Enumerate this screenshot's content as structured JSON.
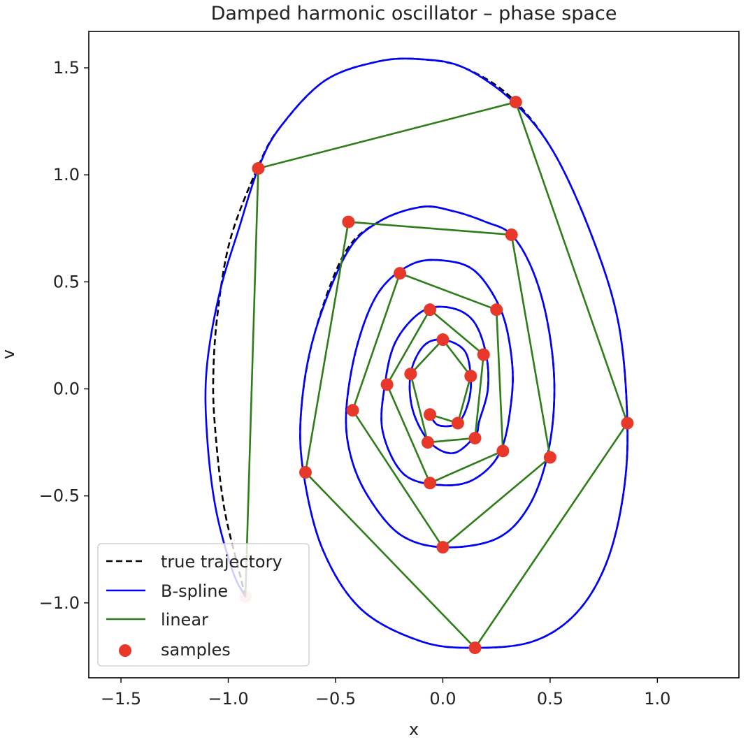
{
  "chart_data": {
    "type": "line",
    "title": "Damped harmonic oscillator – phase space",
    "xlabel": "x",
    "ylabel": "v",
    "xlim": [
      -1.65,
      1.38
    ],
    "ylim": [
      -1.35,
      1.67
    ],
    "xticks": [
      -1.5,
      -1.0,
      -0.5,
      0.0,
      0.5,
      1.0
    ],
    "xtick_labels": [
      "−1.5",
      "−1.0",
      "−0.5",
      "0.0",
      "0.5",
      "1.0"
    ],
    "yticks": [
      1.5,
      1.0,
      0.5,
      0.0,
      -0.5,
      -1.0
    ],
    "ytick_labels": [
      "1.5",
      "1.0",
      "0.5",
      "0.0",
      "−0.5",
      "−1.0"
    ],
    "grid": false,
    "legend_position": "lower-left",
    "series": [
      {
        "name": "true trajectory",
        "style": "dashed",
        "color": "#000000",
        "points": [
          [
            -0.92,
            -0.97
          ],
          [
            -0.95,
            -0.85
          ],
          [
            -1.02,
            -0.55
          ],
          [
            -1.06,
            -0.2
          ],
          [
            -1.07,
            0.05
          ],
          [
            -1.05,
            0.35
          ],
          [
            -0.99,
            0.7
          ],
          [
            -0.86,
            1.04
          ],
          [
            -0.76,
            1.22
          ],
          [
            -0.55,
            1.44
          ],
          [
            -0.3,
            1.53
          ],
          [
            -0.1,
            1.54
          ],
          [
            0.1,
            1.5
          ],
          [
            0.32,
            1.36
          ],
          [
            0.52,
            1.1
          ],
          [
            0.7,
            0.7
          ],
          [
            0.82,
            0.3
          ],
          [
            0.86,
            -0.16
          ],
          [
            0.84,
            -0.5
          ],
          [
            0.76,
            -0.82
          ],
          [
            0.62,
            -1.05
          ],
          [
            0.42,
            -1.18
          ],
          [
            0.15,
            -1.21
          ],
          [
            -0.1,
            -1.18
          ],
          [
            -0.38,
            -1.03
          ],
          [
            -0.56,
            -0.75
          ],
          [
            -0.65,
            -0.39
          ],
          [
            -0.66,
            -0.1
          ],
          [
            -0.6,
            0.25
          ],
          [
            -0.46,
            0.63
          ],
          [
            -0.3,
            0.78
          ],
          [
            -0.1,
            0.85
          ],
          [
            0.05,
            0.83
          ],
          [
            0.2,
            0.78
          ],
          [
            0.32,
            0.72
          ],
          [
            0.42,
            0.55
          ],
          [
            0.49,
            0.3
          ],
          [
            0.52,
            0.0
          ],
          [
            0.49,
            -0.3
          ],
          [
            0.4,
            -0.55
          ],
          [
            0.25,
            -0.7
          ],
          [
            0.0,
            -0.74
          ],
          [
            -0.2,
            -0.68
          ],
          [
            -0.35,
            -0.5
          ],
          [
            -0.43,
            -0.31
          ],
          [
            -0.45,
            -0.1
          ],
          [
            -0.4,
            0.2
          ],
          [
            -0.3,
            0.45
          ],
          [
            -0.15,
            0.58
          ],
          [
            0.0,
            0.6
          ],
          [
            0.15,
            0.55
          ],
          [
            0.27,
            0.37
          ],
          [
            0.32,
            0.15
          ],
          [
            0.32,
            -0.05
          ],
          [
            0.27,
            -0.29
          ],
          [
            0.15,
            -0.42
          ],
          [
            0.0,
            -0.45
          ],
          [
            -0.18,
            -0.4
          ],
          [
            -0.28,
            -0.2
          ],
          [
            -0.27,
            0.02
          ],
          [
            -0.22,
            0.22
          ],
          [
            -0.1,
            0.36
          ],
          [
            0.03,
            0.38
          ],
          [
            0.14,
            0.32
          ],
          [
            0.2,
            0.17
          ],
          [
            0.21,
            0.0
          ],
          [
            0.17,
            -0.15
          ],
          [
            0.15,
            -0.22
          ],
          [
            0.05,
            -0.3
          ],
          [
            -0.06,
            -0.25
          ],
          [
            -0.14,
            -0.1
          ],
          [
            -0.15,
            0.07
          ],
          [
            -0.09,
            0.2
          ],
          [
            0.0,
            0.23
          ],
          [
            0.1,
            0.18
          ],
          [
            0.13,
            0.06
          ],
          [
            0.12,
            -0.06
          ],
          [
            0.07,
            -0.16
          ],
          [
            -0.02,
            -0.17
          ],
          [
            -0.06,
            -0.12
          ]
        ]
      },
      {
        "name": "B-spline",
        "style": "solid",
        "color": "#0000ff",
        "points": [
          [
            -0.92,
            -0.97
          ],
          [
            -0.98,
            -0.85
          ],
          [
            -1.06,
            -0.55
          ],
          [
            -1.1,
            -0.2
          ],
          [
            -1.1,
            0.1
          ],
          [
            -1.04,
            0.45
          ],
          [
            -0.95,
            0.75
          ],
          [
            -0.86,
            1.03
          ],
          [
            -0.76,
            1.22
          ],
          [
            -0.55,
            1.44
          ],
          [
            -0.3,
            1.53
          ],
          [
            -0.1,
            1.54
          ],
          [
            0.1,
            1.5
          ],
          [
            0.33,
            1.34
          ],
          [
            0.52,
            1.1
          ],
          [
            0.7,
            0.7
          ],
          [
            0.82,
            0.3
          ],
          [
            0.86,
            -0.16
          ],
          [
            0.84,
            -0.5
          ],
          [
            0.76,
            -0.82
          ],
          [
            0.62,
            -1.05
          ],
          [
            0.42,
            -1.18
          ],
          [
            0.15,
            -1.21
          ],
          [
            -0.1,
            -1.18
          ],
          [
            -0.38,
            -1.03
          ],
          [
            -0.56,
            -0.75
          ],
          [
            -0.65,
            -0.39
          ],
          [
            -0.66,
            -0.1
          ],
          [
            -0.6,
            0.25
          ],
          [
            -0.45,
            0.63
          ],
          [
            -0.3,
            0.78
          ],
          [
            -0.1,
            0.85
          ],
          [
            0.05,
            0.83
          ],
          [
            0.2,
            0.78
          ],
          [
            0.32,
            0.72
          ],
          [
            0.42,
            0.55
          ],
          [
            0.49,
            0.3
          ],
          [
            0.52,
            0.0
          ],
          [
            0.49,
            -0.3
          ],
          [
            0.4,
            -0.55
          ],
          [
            0.25,
            -0.7
          ],
          [
            0.0,
            -0.74
          ],
          [
            -0.2,
            -0.68
          ],
          [
            -0.35,
            -0.5
          ],
          [
            -0.43,
            -0.31
          ],
          [
            -0.45,
            -0.1
          ],
          [
            -0.4,
            0.2
          ],
          [
            -0.3,
            0.45
          ],
          [
            -0.15,
            0.58
          ],
          [
            0.0,
            0.6
          ],
          [
            0.15,
            0.55
          ],
          [
            0.27,
            0.37
          ],
          [
            0.32,
            0.15
          ],
          [
            0.32,
            -0.05
          ],
          [
            0.27,
            -0.29
          ],
          [
            0.15,
            -0.42
          ],
          [
            0.0,
            -0.45
          ],
          [
            -0.18,
            -0.4
          ],
          [
            -0.28,
            -0.2
          ],
          [
            -0.27,
            0.02
          ],
          [
            -0.22,
            0.22
          ],
          [
            -0.1,
            0.36
          ],
          [
            0.03,
            0.38
          ],
          [
            0.14,
            0.32
          ],
          [
            0.2,
            0.17
          ],
          [
            0.21,
            0.0
          ],
          [
            0.17,
            -0.15
          ],
          [
            0.15,
            -0.22
          ],
          [
            0.05,
            -0.3
          ],
          [
            -0.06,
            -0.25
          ],
          [
            -0.14,
            -0.1
          ],
          [
            -0.15,
            0.07
          ],
          [
            -0.09,
            0.2
          ],
          [
            0.0,
            0.23
          ],
          [
            0.1,
            0.18
          ],
          [
            0.13,
            0.06
          ],
          [
            0.12,
            -0.06
          ],
          [
            0.07,
            -0.16
          ],
          [
            -0.02,
            -0.17
          ],
          [
            -0.06,
            -0.12
          ]
        ]
      },
      {
        "name": "linear",
        "style": "solid",
        "color": "#2e7d1a",
        "points": [
          [
            -0.92,
            -0.97
          ],
          [
            -0.86,
            1.03
          ],
          [
            0.34,
            1.34
          ],
          [
            0.86,
            -0.16
          ],
          [
            0.15,
            -1.21
          ],
          [
            -0.64,
            -0.39
          ],
          [
            -0.44,
            0.78
          ],
          [
            0.32,
            0.72
          ],
          [
            0.5,
            -0.32
          ],
          [
            0.0,
            -0.74
          ],
          [
            -0.42,
            -0.1
          ],
          [
            -0.2,
            0.54
          ],
          [
            0.25,
            0.37
          ],
          [
            0.28,
            -0.29
          ],
          [
            -0.06,
            -0.44
          ],
          [
            -0.26,
            0.02
          ],
          [
            -0.06,
            0.37
          ],
          [
            0.19,
            0.16
          ],
          [
            0.15,
            -0.23
          ],
          [
            -0.07,
            -0.25
          ],
          [
            -0.15,
            0.07
          ],
          [
            0.0,
            0.23
          ],
          [
            0.13,
            0.06
          ],
          [
            0.07,
            -0.16
          ],
          [
            -0.06,
            -0.12
          ]
        ]
      },
      {
        "name": "samples",
        "style": "markers",
        "color": "#e8382a",
        "points": [
          [
            -0.92,
            -0.97
          ],
          [
            -0.86,
            1.03
          ],
          [
            0.34,
            1.34
          ],
          [
            0.86,
            -0.16
          ],
          [
            0.15,
            -1.21
          ],
          [
            -0.64,
            -0.39
          ],
          [
            -0.44,
            0.78
          ],
          [
            0.32,
            0.72
          ],
          [
            0.5,
            -0.32
          ],
          [
            0.0,
            -0.74
          ],
          [
            -0.42,
            -0.1
          ],
          [
            -0.2,
            0.54
          ],
          [
            0.25,
            0.37
          ],
          [
            0.28,
            -0.29
          ],
          [
            -0.06,
            -0.44
          ],
          [
            -0.26,
            0.02
          ],
          [
            -0.06,
            0.37
          ],
          [
            0.19,
            0.16
          ],
          [
            0.15,
            -0.23
          ],
          [
            -0.07,
            -0.25
          ],
          [
            -0.15,
            0.07
          ],
          [
            0.0,
            0.23
          ],
          [
            0.13,
            0.06
          ],
          [
            0.07,
            -0.16
          ],
          [
            -0.06,
            -0.12
          ]
        ]
      }
    ]
  }
}
